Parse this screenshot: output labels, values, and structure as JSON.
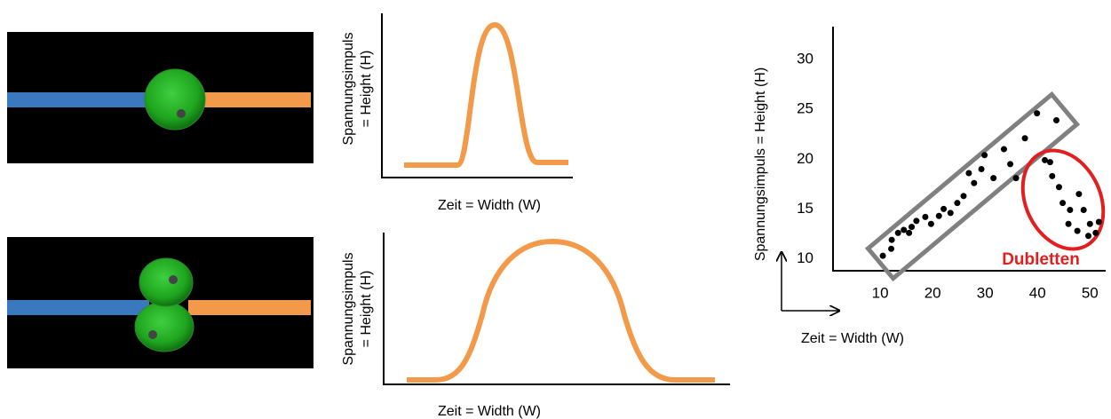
{
  "panels": [
    {
      "y_label": [
        "Spannungsimpuls",
        "= Height (H)"
      ],
      "x_label": "Zeit = Width (W)"
    },
    {
      "y_label": [
        "Spannungsimpuls",
        "= Height (H)"
      ],
      "x_label": "Zeit = Width (W)"
    }
  ],
  "chart_data": {
    "type": "scatter",
    "y_label": "Spannungsimpuls = Height (H)",
    "x_label": "Zeit = Width (W)",
    "annotation": "Dubletten",
    "xlim": [
      1,
      53
    ],
    "ylim": [
      8.8,
      33.3
    ],
    "xticks": [
      10,
      20,
      30,
      40,
      50
    ],
    "yticks": [
      10,
      15,
      20,
      25,
      30
    ],
    "color": "#000000",
    "x": [
      10.5,
      12.1,
      12.2,
      13.4,
      14.5,
      15.5,
      16.0,
      16.9,
      18.6,
      19.7,
      21.2,
      22.1,
      23.4,
      24.7,
      25.9,
      26.9,
      27.9,
      29.3,
      29.9,
      31.6,
      33.6,
      34.8,
      35.9,
      37.6,
      39.9,
      43.6,
      41.4,
      42.4,
      42.8,
      44.1,
      44.8,
      46.2,
      47.9,
      48.8,
      50.0,
      47.6,
      49.7,
      51.1,
      45.9,
      51.7
    ],
    "values": [
      10.3,
      11.0,
      11.9,
      12.6,
      12.9,
      12.6,
      13.2,
      13.8,
      14.2,
      13.5,
      14.3,
      15.0,
      14.6,
      15.6,
      16.3,
      18.6,
      17.6,
      19.0,
      20.4,
      18.1,
      21.0,
      19.5,
      18.1,
      22.1,
      24.6,
      23.9,
      19.9,
      19.7,
      18.3,
      17.2,
      15.6,
      14.9,
      16.5,
      14.9,
      13.5,
      12.8,
      12.3,
      12.6,
      13.5,
      13.7
    ]
  }
}
